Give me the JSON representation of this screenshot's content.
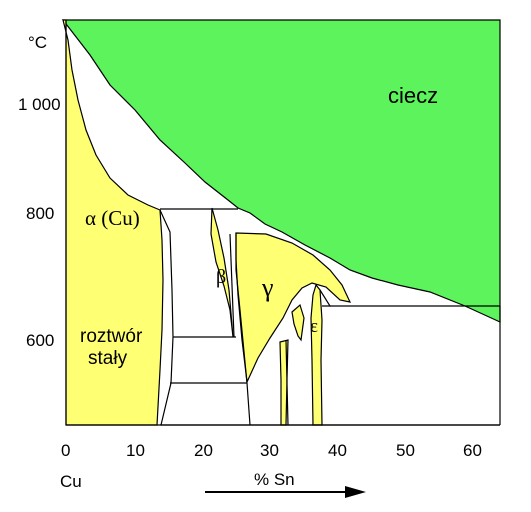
{
  "diagram": {
    "y_unit": "°C",
    "y_ticks": [
      "1 000",
      "800",
      "600"
    ],
    "x_ticks": [
      "0",
      "10",
      "20",
      "30",
      "40",
      "50",
      "60"
    ],
    "x_element_label": "Cu",
    "x_axis_label": "% Sn",
    "phases": {
      "liquid": "ciecz",
      "alpha": "α (Cu)",
      "beta": "β",
      "gamma": "γ",
      "epsilon": "ε",
      "solid_solution_line1": "roztwór",
      "solid_solution_line2": "stały"
    },
    "colors": {
      "liquid": "#5cf35c",
      "solid": "#ffff73",
      "line": "#000000",
      "background": "#ffffff"
    }
  }
}
